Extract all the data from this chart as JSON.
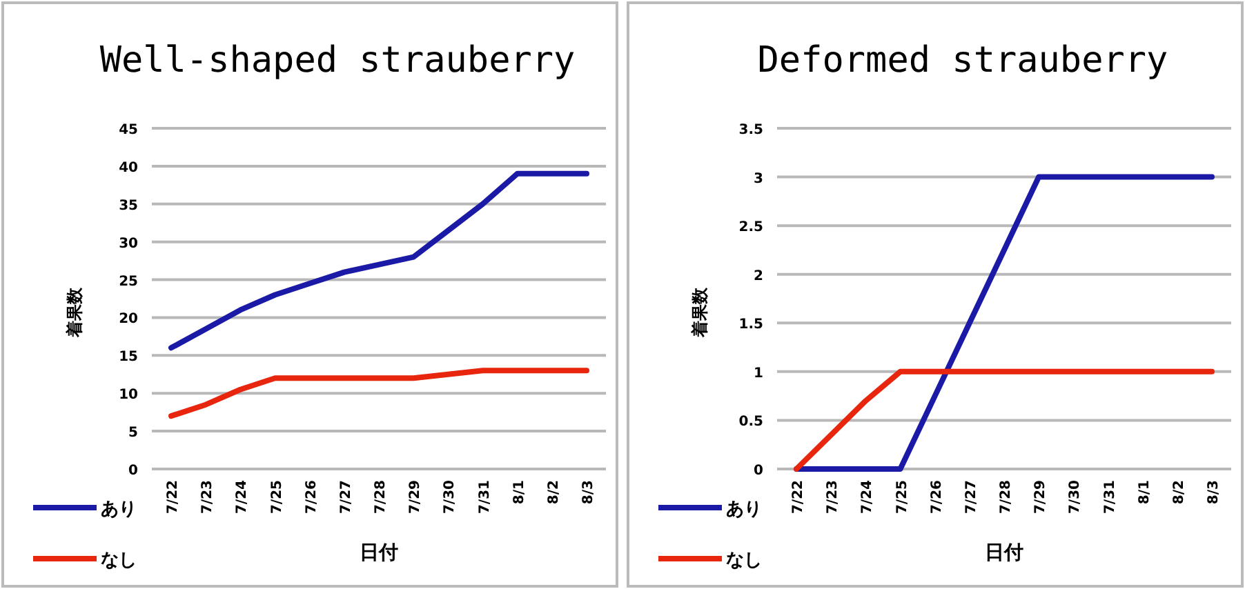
{
  "chart_data": [
    {
      "type": "line",
      "title": "Well-shaped strauberry",
      "xlabel": "日付",
      "ylabel": "着果数",
      "categories": [
        "7/22",
        "7/23",
        "7/24",
        "7/25",
        "7/26",
        "7/27",
        "7/28",
        "7/29",
        "7/30",
        "7/31",
        "8/1",
        "8/2",
        "8/3"
      ],
      "ylim": [
        0,
        45
      ],
      "yticks": [
        0,
        5,
        10,
        15,
        20,
        25,
        30,
        35,
        40,
        45
      ],
      "grid": "y",
      "legend": "bottom left",
      "marker": "none",
      "line_style": "solid",
      "series": [
        {
          "name": "あり",
          "color": "#1a1aa6",
          "values": [
            16,
            18.5,
            21,
            23,
            24.5,
            26,
            27,
            28,
            31.5,
            35,
            39,
            39,
            39
          ]
        },
        {
          "name": "なし",
          "color": "#e8260e",
          "values": [
            7,
            8.5,
            10.5,
            12,
            12,
            12,
            12,
            12,
            12.5,
            13,
            13,
            13,
            13
          ]
        }
      ]
    },
    {
      "type": "line",
      "title": "Deformed strauberry",
      "xlabel": "日付",
      "ylabel": "着果数",
      "categories": [
        "7/22",
        "7/23",
        "7/24",
        "7/25",
        "7/26",
        "7/27",
        "7/28",
        "7/29",
        "7/30",
        "7/31",
        "8/1",
        "8/2",
        "8/3"
      ],
      "ylim": [
        0,
        3.5
      ],
      "yticks": [
        0,
        0.5,
        1,
        1.5,
        2,
        2.5,
        3,
        3.5
      ],
      "grid": "y",
      "legend": "bottom left",
      "marker": "none",
      "line_style": "solid",
      "series": [
        {
          "name": "あり",
          "color": "#1a1aa6",
          "values": [
            0,
            0,
            0,
            0,
            0.75,
            1.5,
            2.25,
            3,
            3,
            3,
            3,
            3,
            3
          ]
        },
        {
          "name": "なし",
          "color": "#e8260e",
          "values": [
            0,
            0.35,
            0.7,
            1,
            1,
            1,
            1,
            1,
            1,
            1,
            1,
            1,
            1
          ]
        }
      ]
    }
  ]
}
